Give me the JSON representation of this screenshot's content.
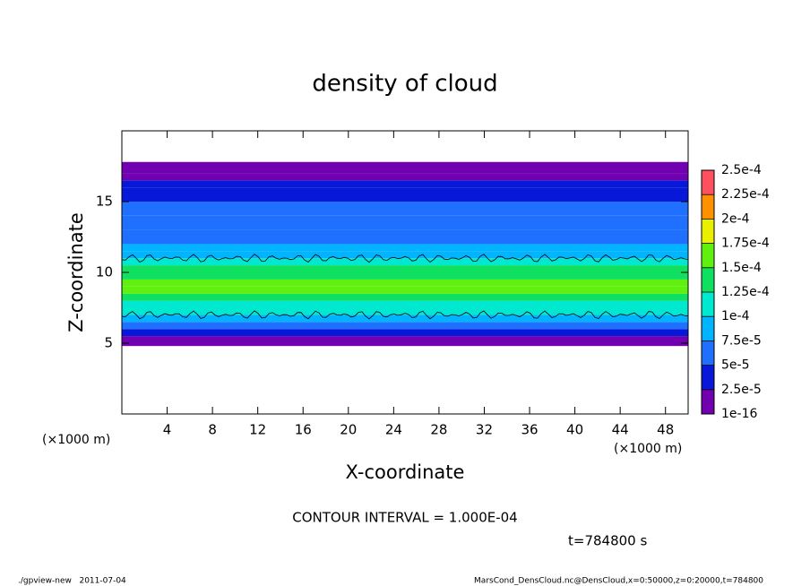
{
  "chart_data": {
    "type": "heatmap",
    "title": "density of cloud",
    "x_label": "X-coordinate",
    "y_label": "Z-coordinate",
    "x_unit": "(×1000 m)",
    "y_unit": "(×1000 m)",
    "xlim": [
      0,
      50
    ],
    "xticks": [
      4,
      8,
      12,
      16,
      20,
      24,
      28,
      32,
      36,
      40,
      44,
      48
    ],
    "ylim": [
      0,
      20
    ],
    "yticks": [
      5,
      10,
      15
    ],
    "zbins": [
      4.8,
      5.5,
      6,
      6.5,
      7,
      7.5,
      8,
      8.5,
      9,
      9.5,
      10,
      10.5,
      11,
      11.5,
      12,
      13,
      14,
      15,
      16,
      16.5,
      17,
      17.8
    ],
    "values": [
      1e-05,
      3e-05,
      6e-05,
      8e-05,
      0.000105,
      0.00012,
      0.000135,
      0.00015,
      0.000155,
      0.000145,
      0.00013,
      0.00011,
      9e-05,
      8e-05,
      7e-05,
      6e-05,
      5.5e-05,
      4.5e-05,
      3e-05,
      2e-05,
      5e-06
    ],
    "colorbar": {
      "levels": [
        {
          "value": 1e-16,
          "label": "1e-16"
        },
        {
          "value": 2.5e-05,
          "label": "2.5e-5"
        },
        {
          "value": 5e-05,
          "label": "5e-5"
        },
        {
          "value": 7.5e-05,
          "label": "7.5e-5"
        },
        {
          "value": 0.0001,
          "label": "1e-4"
        },
        {
          "value": 0.000125,
          "label": "1.25e-4"
        },
        {
          "value": 0.00015,
          "label": "1.5e-4"
        },
        {
          "value": 0.000175,
          "label": "1.75e-4"
        },
        {
          "value": 0.0002,
          "label": "2e-4"
        },
        {
          "value": 0.000225,
          "label": "2.25e-4"
        },
        {
          "value": 0.00025,
          "label": "2.5e-4"
        }
      ],
      "colors": [
        "#7000b0",
        "#0818d8",
        "#2070ff",
        "#00b4ff",
        "#00e8d0",
        "#10e060",
        "#60f010",
        "#e8f000",
        "#ff9000",
        "#ff5060"
      ]
    },
    "contour_interval": {
      "value": 0.0001,
      "label": "CONTOUR INTERVAL = 1.000E-04"
    },
    "time_label": "t=784800 s",
    "footer_left": "./gpview-new   2011-07-04",
    "footer_right": "MarsCond_DensCloud.nc@DensCloud,x=0:50000,z=0:20000,t=784800"
  }
}
